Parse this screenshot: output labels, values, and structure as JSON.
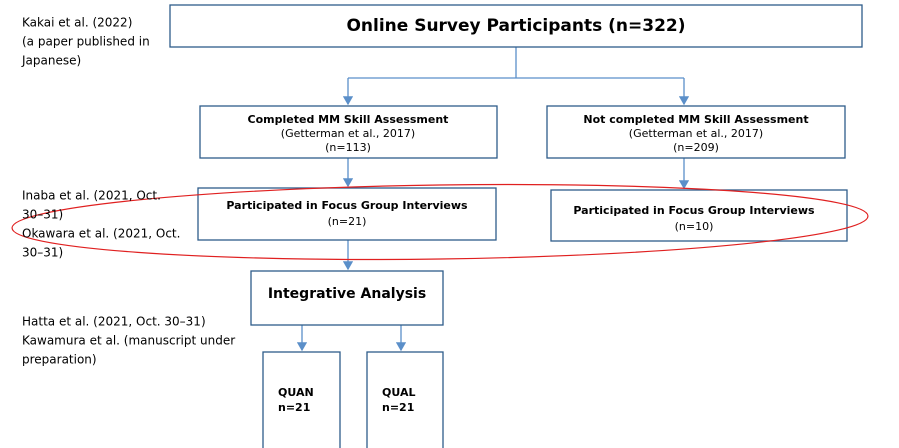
{
  "notes": [
    {
      "lines": [
        "Kakai et al. (2022)",
        "(a paper published in",
        "Japanese)"
      ]
    },
    {
      "lines": [
        "Inaba et al. (2021, Oct.",
        "30–31)",
        "Okawara et al. (2021, Oct.",
        "30–31)"
      ]
    },
    {
      "lines": [
        "Hatta et al. (2021, Oct. 30–31)",
        "Kawamura et al. (manuscript under",
        "preparation)"
      ]
    }
  ],
  "boxes": {
    "participants": {
      "label": "Online Survey Participants (n=322)"
    },
    "completed": {
      "lines": [
        "Completed MM Skill Assessment",
        "(Getterman et al., 2017)",
        "(n=113)"
      ]
    },
    "not_completed": {
      "lines": [
        "Not completed MM Skill Assessment",
        "(Getterman et al., 2017)",
        "(n=209)"
      ]
    },
    "fgi_completed": {
      "lines": [
        "Participated in Focus Group Interviews",
        "(n=21)"
      ]
    },
    "fgi_not_completed": {
      "lines": [
        "Participated in Focus Group Interviews",
        "(n=10)"
      ]
    },
    "integrative": {
      "label": "Integrative Analysis"
    },
    "quan": {
      "lines": [
        "QUAN",
        "n=21"
      ]
    },
    "qual": {
      "lines": [
        "QUAL",
        "n=21"
      ]
    }
  }
}
